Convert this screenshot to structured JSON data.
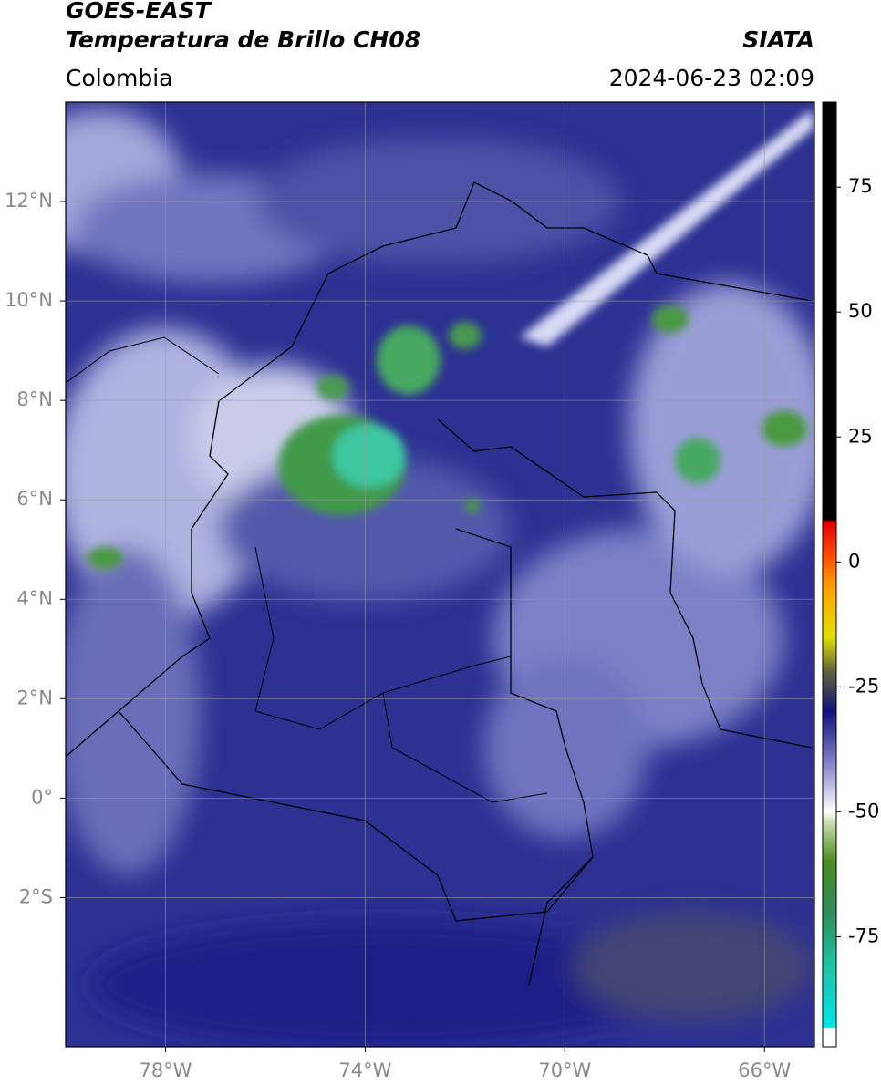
{
  "header": {
    "title_line1": "GOES-EAST",
    "title_line2": "Temperatura de Brillo CH08",
    "source": "SIATA",
    "region": "Colombia",
    "datetime": "2024-06-23 02:09"
  },
  "map": {
    "xlim": [
      -80,
      -65
    ],
    "ylim": [
      -5,
      14
    ],
    "xticks": [
      {
        "value": -78,
        "label": "78°W"
      },
      {
        "value": -74,
        "label": "74°W"
      },
      {
        "value": -70,
        "label": "70°W"
      },
      {
        "value": -66,
        "label": "66°W"
      }
    ],
    "yticks": [
      {
        "value": 12,
        "label": "12°N"
      },
      {
        "value": 10,
        "label": "10°N"
      },
      {
        "value": 8,
        "label": "8°N"
      },
      {
        "value": 6,
        "label": "6°N"
      },
      {
        "value": 4,
        "label": "4°N"
      },
      {
        "value": 2,
        "label": "2°N"
      },
      {
        "value": 0,
        "label": "0°"
      },
      {
        "value": -2,
        "label": "2°S"
      }
    ],
    "grid": true
  },
  "colorbar": {
    "lim": [
      -97,
      92
    ],
    "ticks": [
      75,
      50,
      25,
      0,
      -25,
      -50,
      -75
    ],
    "colormap": [
      {
        "value": 92,
        "color": "#000000"
      },
      {
        "value": 8.5,
        "color": "#000000"
      },
      {
        "value": 8,
        "color": "#e00000"
      },
      {
        "value": 2,
        "color": "#ff4000"
      },
      {
        "value": -5,
        "color": "#ffa000"
      },
      {
        "value": -15,
        "color": "#e0e000"
      },
      {
        "value": -22,
        "color": "#606040"
      },
      {
        "value": -27,
        "color": "#303060"
      },
      {
        "value": -30,
        "color": "#101080"
      },
      {
        "value": -40,
        "color": "#8080c8"
      },
      {
        "value": -50,
        "color": "#ffffff"
      },
      {
        "value": -52,
        "color": "#c8e0b0"
      },
      {
        "value": -60,
        "color": "#4a8a20"
      },
      {
        "value": -70,
        "color": "#2e8b57"
      },
      {
        "value": -80,
        "color": "#20c0a0"
      },
      {
        "value": -93,
        "color": "#00e5e5"
      },
      {
        "value": -93.5,
        "color": "#ffffff"
      },
      {
        "value": -97,
        "color": "#ffffff"
      }
    ]
  }
}
